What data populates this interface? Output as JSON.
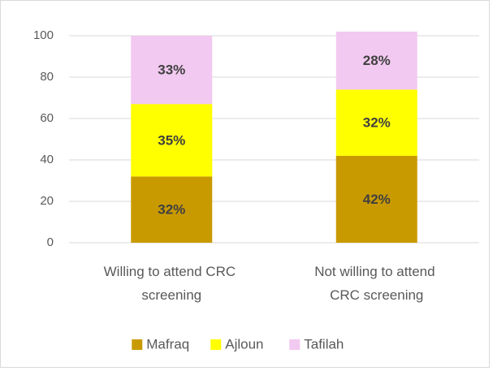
{
  "chart_data": {
    "type": "stacked_bar",
    "categories": [
      "Willing to attend CRC screening",
      "Not willing to attend CRC screening"
    ],
    "series": [
      {
        "name": "Mafraq",
        "color": "#c99a00",
        "values": [
          32,
          42
        ],
        "value_labels": [
          "32%",
          "42%"
        ]
      },
      {
        "name": "Ajloun",
        "color": "#ffff00",
        "values": [
          35,
          32
        ],
        "value_labels": [
          "35%",
          "32%"
        ]
      },
      {
        "name": "Tafilah",
        "color": "#f2c9f0",
        "values": [
          33,
          28
        ],
        "value_labels": [
          "33%",
          "28%"
        ]
      }
    ],
    "ylim": [
      0,
      100
    ],
    "yticks": [
      0,
      20,
      40,
      60,
      80,
      100
    ],
    "grid": true,
    "legend": "bottom"
  }
}
